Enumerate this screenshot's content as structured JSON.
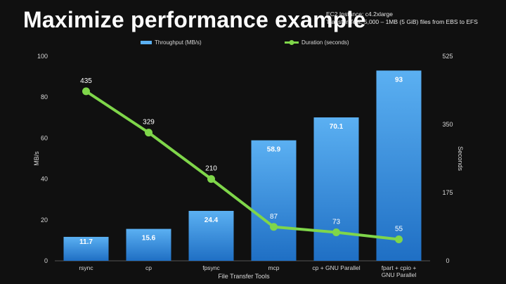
{
  "slide": {
    "title": "Maximize performance example",
    "subtitle_line1": "EC2 Instance: c4.2xlarge",
    "subtitle_line2": "Transfer Test: 5,000 – 1MB (5 GiB) files from EBS to EFS"
  },
  "colors": {
    "background": "#101010",
    "bar_top": "#5bb0f2",
    "bar_bottom": "#1f6fc4",
    "line": "#7fd64a",
    "axis_text": "#d8d8d8",
    "grid": "#3a3a3a"
  },
  "chart_data": {
    "type": "bar",
    "title": "",
    "xlabel": "File Transfer Tools",
    "ylabel": "MB/s",
    "y2label": "Seconds",
    "categories": [
      [
        "rsync"
      ],
      [
        "cp"
      ],
      [
        "fpsync"
      ],
      [
        "mcp"
      ],
      [
        "cp + GNU Parallel"
      ],
      [
        "fpart + cpio +",
        "GNU Parallel"
      ]
    ],
    "series": [
      {
        "name": "Throughput (MB/s)",
        "kind": "bar",
        "axis": "left",
        "values": [
          11.7,
          15.6,
          24.4,
          58.9,
          70.1,
          93
        ]
      },
      {
        "name": "Duration (seconds)",
        "kind": "line",
        "axis": "right",
        "values": [
          435,
          329,
          210,
          87,
          73,
          55
        ]
      }
    ],
    "ylim": [
      0,
      100
    ],
    "yticks": [
      0,
      20,
      40,
      60,
      80,
      100
    ],
    "y2lim": [
      0,
      525
    ],
    "y2ticks": [
      0,
      175,
      350,
      525
    ],
    "grid": false,
    "legend_position": "top"
  }
}
